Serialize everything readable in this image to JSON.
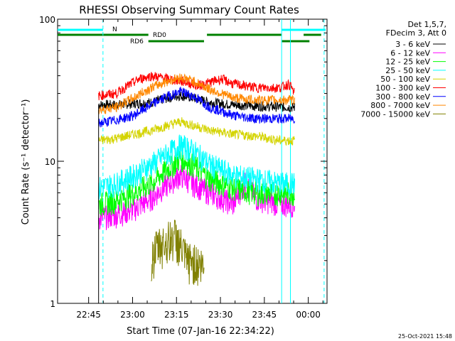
{
  "chart_data": {
    "type": "line",
    "title": "RHESSI Observing Summary Count Rates",
    "xlabel": "Start Time (07-Jan-16 22:34:22)",
    "ylabel": "Count Rate (s⁻¹ detector⁻¹)",
    "yscale": "log",
    "ylim": [
      1,
      100
    ],
    "x_unit": "minutes since 22:34:22",
    "xlim": [
      0,
      92
    ],
    "x_ticks": [
      {
        "label": "22:45",
        "min": 10.6
      },
      {
        "label": "23:00",
        "min": 25.6
      },
      {
        "label": "23:15",
        "min": 40.6
      },
      {
        "label": "23:30",
        "min": 55.6
      },
      {
        "label": "23:45",
        "min": 70.6
      },
      {
        "label": "00:00",
        "min": 85.6
      }
    ],
    "y_ticks": [
      {
        "label": "100",
        "value": 100
      },
      {
        "label": "10",
        "value": 10
      },
      {
        "label": "1",
        "value": 1
      }
    ],
    "legend": {
      "position": "right",
      "header": [
        "Det 1,5,7,",
        "FDecim 3, Att 0"
      ]
    },
    "series": [
      {
        "name": "3 - 6 keV",
        "color": "#000000",
        "points": [
          [
            14,
            25
          ],
          [
            20,
            25
          ],
          [
            26,
            25.5
          ],
          [
            32,
            26
          ],
          [
            38,
            28
          ],
          [
            42,
            29
          ],
          [
            46,
            28
          ],
          [
            52,
            26
          ],
          [
            60,
            25
          ],
          [
            68,
            24.5
          ],
          [
            80,
            24
          ],
          [
            81,
            24
          ]
        ]
      },
      {
        "name": "6 - 12 keV",
        "color": "#ff00ff",
        "points": [
          [
            14,
            4
          ],
          [
            20,
            4.2
          ],
          [
            26,
            4.6
          ],
          [
            32,
            5.5
          ],
          [
            38,
            7
          ],
          [
            42,
            8
          ],
          [
            46,
            7
          ],
          [
            52,
            6
          ],
          [
            60,
            5
          ],
          [
            64,
            7
          ],
          [
            68,
            5.5
          ],
          [
            76,
            5
          ],
          [
            81,
            5
          ]
        ]
      },
      {
        "name": "12 - 25 keV",
        "color": "#00ff00",
        "points": [
          [
            14,
            5
          ],
          [
            20,
            5.3
          ],
          [
            26,
            6
          ],
          [
            32,
            7
          ],
          [
            38,
            9
          ],
          [
            42,
            10.5
          ],
          [
            46,
            9.5
          ],
          [
            52,
            7.5
          ],
          [
            60,
            6.5
          ],
          [
            68,
            6
          ],
          [
            76,
            6
          ],
          [
            81,
            6
          ]
        ]
      },
      {
        "name": "25 - 50 keV",
        "color": "#00ffff",
        "points": [
          [
            14,
            6.5
          ],
          [
            20,
            7
          ],
          [
            26,
            8
          ],
          [
            32,
            9.5
          ],
          [
            38,
            11.5
          ],
          [
            42,
            13
          ],
          [
            46,
            12
          ],
          [
            52,
            9.5
          ],
          [
            60,
            8
          ],
          [
            68,
            7.5
          ],
          [
            76,
            7
          ],
          [
            81,
            7
          ]
        ]
      },
      {
        "name": "50 - 100 keV",
        "color": "#d4d400",
        "points": [
          [
            14,
            14
          ],
          [
            20,
            14.5
          ],
          [
            26,
            15.5
          ],
          [
            32,
            16.5
          ],
          [
            38,
            18
          ],
          [
            42,
            19
          ],
          [
            46,
            18
          ],
          [
            52,
            16.5
          ],
          [
            60,
            15.5
          ],
          [
            68,
            15
          ],
          [
            76,
            14
          ],
          [
            81,
            14
          ]
        ]
      },
      {
        "name": "100 - 300 keV",
        "color": "#ff0000",
        "points": [
          [
            14,
            29
          ],
          [
            20,
            30
          ],
          [
            24,
            34
          ],
          [
            28,
            38
          ],
          [
            32,
            40
          ],
          [
            38,
            38
          ],
          [
            44,
            36
          ],
          [
            48,
            34
          ],
          [
            52,
            36
          ],
          [
            56,
            38
          ],
          [
            60,
            35
          ],
          [
            68,
            33
          ],
          [
            76,
            33
          ],
          [
            79,
            35
          ],
          [
            81,
            30
          ]
        ]
      },
      {
        "name": "300 - 800 keV",
        "color": "#0000ff",
        "points": [
          [
            14,
            18.5
          ],
          [
            20,
            19.5
          ],
          [
            26,
            21
          ],
          [
            32,
            25
          ],
          [
            38,
            29
          ],
          [
            42,
            31
          ],
          [
            46,
            29
          ],
          [
            52,
            24
          ],
          [
            60,
            21
          ],
          [
            68,
            20
          ],
          [
            76,
            20
          ],
          [
            81,
            20
          ]
        ]
      },
      {
        "name": "800 - 7000 keV",
        "color": "#ff8800",
        "points": [
          [
            14,
            23
          ],
          [
            20,
            24
          ],
          [
            26,
            28
          ],
          [
            32,
            33
          ],
          [
            38,
            37
          ],
          [
            42,
            39
          ],
          [
            46,
            37
          ],
          [
            52,
            32
          ],
          [
            60,
            28
          ],
          [
            68,
            27
          ],
          [
            76,
            27
          ],
          [
            81,
            27
          ]
        ]
      },
      {
        "name": "7000 - 15000 keV",
        "color": "#808000",
        "points": [
          [
            32,
            2
          ],
          [
            34,
            2.5
          ],
          [
            38,
            2.8
          ],
          [
            40,
            3
          ],
          [
            42,
            2.5
          ],
          [
            44,
            2
          ],
          [
            46,
            2
          ],
          [
            50,
            1.8
          ]
        ]
      }
    ],
    "flags": [
      {
        "name": "N",
        "color": "#00ffff",
        "segments": [
          [
            0,
            15.5
          ],
          [
            76.5,
            91.5
          ]
        ]
      },
      {
        "name": "RD0",
        "color": "#008000",
        "segments": [
          [
            0,
            31
          ],
          [
            51,
            76.5
          ],
          [
            84,
            90
          ]
        ]
      },
      {
        "name": "RD6",
        "color": "#008000",
        "segments": [
          [
            31,
            50
          ],
          [
            76.5,
            86
          ]
        ]
      }
    ],
    "vertical_lines": [
      {
        "min": 15.5,
        "color": "#00ffff",
        "dashed": true
      },
      {
        "min": 76.5,
        "color": "#00ffff",
        "dashed": false
      },
      {
        "min": 79.5,
        "color": "#00ffff",
        "dashed": false
      },
      {
        "min": 91,
        "color": "#00ffff",
        "dashed": true
      }
    ],
    "timestamp": "25-Oct-2021 15:48"
  }
}
